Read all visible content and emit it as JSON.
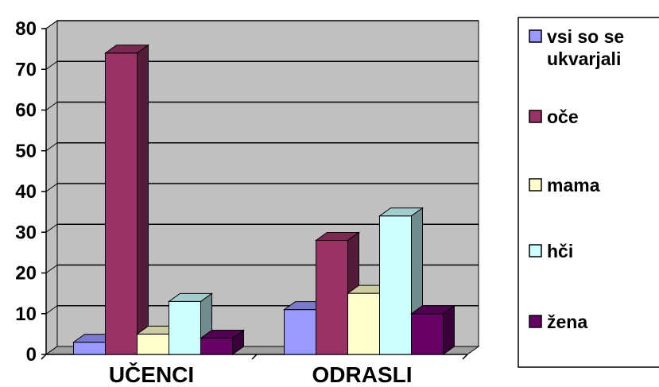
{
  "chart_data": {
    "type": "bar",
    "style": "3d-clustered",
    "categories": [
      "UČENCI",
      "ODRASLI"
    ],
    "series": [
      {
        "name": "vsi so se ukvarjali",
        "legend_lines": [
          "vsi so se",
          "ukvarjali"
        ],
        "values": [
          3,
          11
        ],
        "color": "#9999ff"
      },
      {
        "name": "oče",
        "legend_lines": [
          "oče"
        ],
        "values": [
          74,
          28
        ],
        "color": "#993366"
      },
      {
        "name": "mama",
        "legend_lines": [
          "mama"
        ],
        "values": [
          5,
          15
        ],
        "color": "#ffffcc"
      },
      {
        "name": "hči",
        "legend_lines": [
          "hči"
        ],
        "values": [
          13,
          34
        ],
        "color": "#ccffff"
      },
      {
        "name": "žena",
        "legend_lines": [
          "žena"
        ],
        "values": [
          4,
          10
        ],
        "color": "#660066"
      }
    ],
    "yticks": [
      "0",
      "10",
      "20",
      "30",
      "40",
      "50",
      "60",
      "70",
      "80"
    ],
    "ylim": [
      0,
      80
    ],
    "grid": true,
    "wall_color": "#c0c0c0",
    "legend_position": "right"
  }
}
